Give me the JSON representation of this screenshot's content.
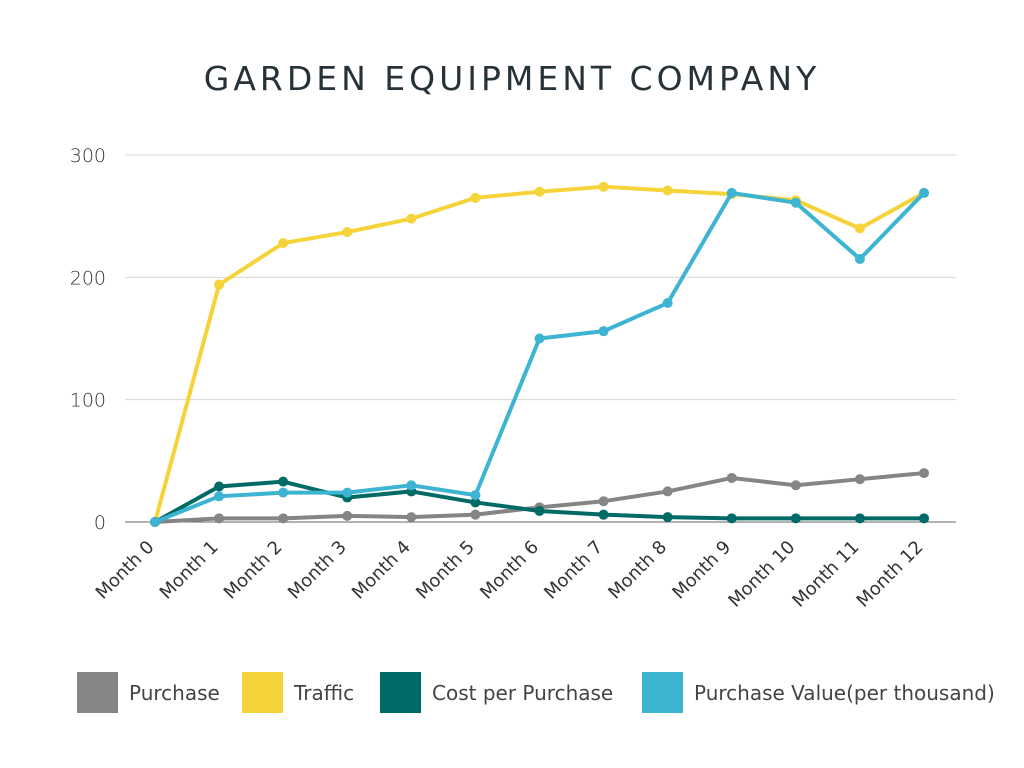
{
  "chart_data": {
    "type": "line",
    "title": "GARDEN EQUIPMENT COMPANY",
    "categories": [
      "Month 0",
      "Month 1",
      "Month 2",
      "Month 3",
      "Month 4",
      "Month 5",
      "Month 6",
      "Month 7",
      "Month 8",
      "Month 9",
      "Month 10",
      "Month 11",
      "Month 12"
    ],
    "series": [
      {
        "name": "Purchase",
        "color": "#858585",
        "values": [
          0,
          3,
          3,
          5,
          4,
          6,
          12,
          17,
          25,
          36,
          30,
          35,
          40
        ]
      },
      {
        "name": "Traffic",
        "color": "#f5d33b",
        "values": [
          0,
          194,
          228,
          237,
          248,
          265,
          270,
          274,
          271,
          268,
          263,
          240,
          269
        ]
      },
      {
        "name": "Cost per Purchase",
        "color": "#006b66",
        "values": [
          0,
          29,
          33,
          20,
          25,
          16,
          9,
          6,
          4,
          3,
          3,
          3,
          3
        ]
      },
      {
        "name": "Purchase Value(per thousand)",
        "color": "#3cb4d2",
        "values": [
          0,
          21,
          24,
          24,
          30,
          22,
          150,
          156,
          179,
          269,
          261,
          215,
          269
        ]
      }
    ],
    "ylim": [
      0,
      300
    ],
    "yticks": [
      0,
      100,
      200,
      300
    ],
    "grid": true,
    "legend": "bottom"
  }
}
